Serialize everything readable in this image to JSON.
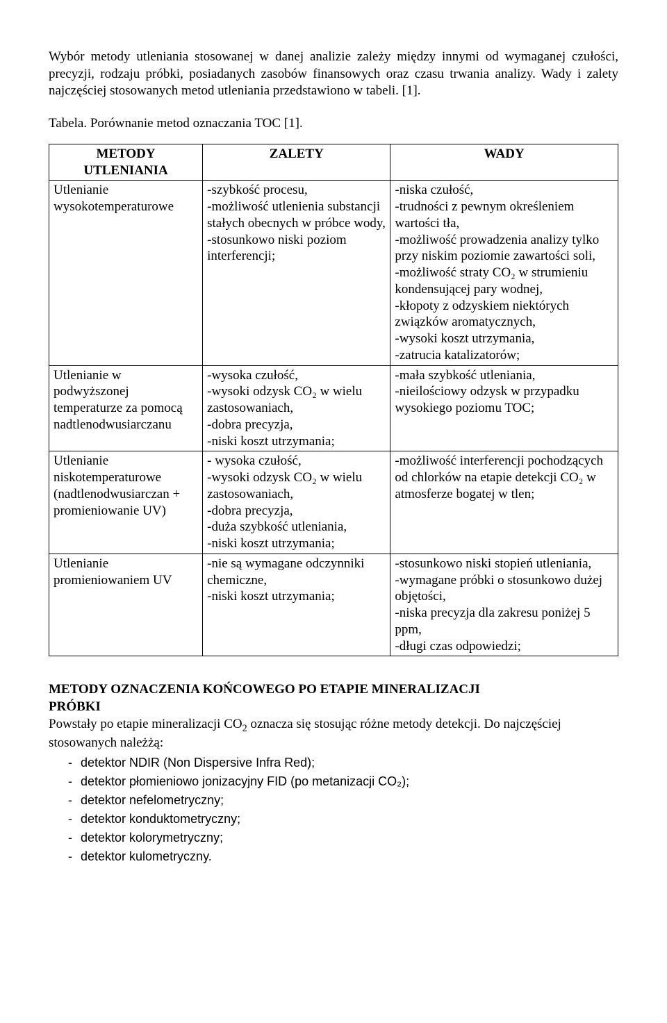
{
  "intro": {
    "p1": "Wybór metody utleniania stosowanej w danej analizie zależy między innymi od wymaganej czułości, precyzji, rodzaju próbki, posiadanych zasobów finansowych oraz czasu trwania analizy. Wady i zalety najczęściej stosowanych metod utleniania przedstawiono w tabeli. [1].",
    "caption": "Tabela. Porównanie metod oznaczania TOC [1]."
  },
  "table": {
    "headers": {
      "methods_l1": "METODY",
      "methods_l2": "UTLENIANIA",
      "zalety": "ZALETY",
      "wady": "WADY"
    },
    "rows": [
      {
        "method": "Utlenianie wysokotemperaturowe",
        "zalety": "-szybkość procesu,\n-możliwość utlenienia substancji stałych obecnych w próbce wody,\n-stosunkowo niski poziom interferencji;",
        "wady": "-niska czułość,\n-trudności z pewnym określeniem wartości tła,\n-możliwość prowadzenia analizy tylko przy niskim poziomie zawartości soli,\n-możliwość straty CO₂ w strumieniu kondensującej pary wodnej,\n-kłopoty z odzyskiem niektórych związków aromatycznych,\n-wysoki koszt utrzymania,\n-zatrucia katalizatorów;"
      },
      {
        "method": "Utlenianie w podwyższonej temperaturze za pomocą nadtlenodwusiarczanu",
        "zalety": "-wysoka czułość,\n-wysoki odzysk CO₂ w wielu zastosowaniach,\n-dobra precyzja,\n-niski koszt utrzymania;",
        "wady": "-mała szybkość utleniania,\n-nieilościowy odzysk w przypadku wysokiego poziomu TOC;"
      },
      {
        "method": "Utlenianie niskotemperaturowe (nadtlenodwusiarczan + promieniowanie UV)",
        "zalety": "- wysoka czułość,\n-wysoki odzysk CO₂ w wielu zastosowaniach,\n-dobra precyzja,\n-duża szybkość utleniania,\n-niski koszt utrzymania;",
        "wady": "-możliwość interferencji pochodzących od chlorków na etapie detekcji CO₂ w atmosferze bogatej w tlen;"
      },
      {
        "method": "Utlenianie promieniowaniem UV",
        "zalety": "-nie są wymagane odczynniki chemiczne,\n-niski koszt utrzymania;",
        "wady": "-stosunkowo niski stopień utleniania,\n-wymagane próbki o stosunkowo dużej objętości,\n-niska precyzja dla zakresu poniżej 5 ppm,\n-długi czas odpowiedzi;"
      }
    ]
  },
  "section": {
    "heading_l1": "METODY OZNACZENIA KOŃCOWEGO PO ETAPIE MINERALIZACJI",
    "heading_l2": "PRÓBKI",
    "text_before": "Powstały po etapie mineralizacji CO",
    "text_after": " oznacza się stosując różne metody detekcji. Do najczęściej stosowanych należżą:",
    "sub2": "2",
    "items": [
      "detektor NDIR (Non Dispersive Infra Red);",
      "detektor płomieniowo jonizacyjny FID (po metanizacji CO₂);",
      "detektor nefelometryczny;",
      "detektor konduktometryczny;",
      "detektor kolorymetryczny;",
      "detektor kulometryczny."
    ]
  }
}
